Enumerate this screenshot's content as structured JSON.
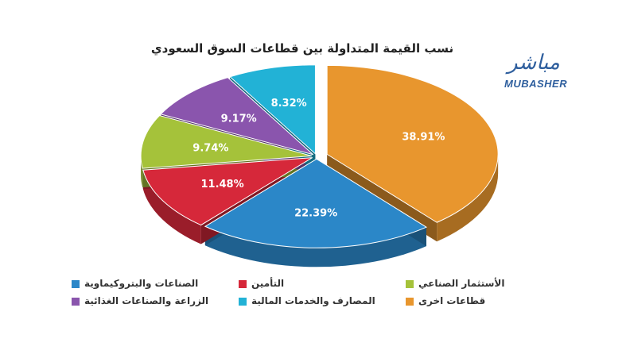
{
  "chart_data": {
    "type": "pie",
    "title": "نسب القيمة المتداولة بين قطاعات السوق السعودي",
    "legend_position": "bottom",
    "slices": [
      {
        "label": "قطاعات اخرى",
        "value": 38.91,
        "value_label": "38.91%",
        "color": "#e8962e"
      },
      {
        "label": "الصناعات والبتروكيماوية",
        "value": 22.39,
        "value_label": "22.39%",
        "color": "#2b87c8"
      },
      {
        "label": "التأمين",
        "value": 11.48,
        "value_label": "11.48%",
        "color": "#d6283a"
      },
      {
        "label": "الأستثمار الصناعي",
        "value": 9.74,
        "value_label": "9.74%",
        "color": "#a5c23a"
      },
      {
        "label": "الزراعة والصناعات الغذائية",
        "value": 9.17,
        "value_label": "9.17%",
        "color": "#8a55ad"
      },
      {
        "label": "المصارف والخدمات المالية",
        "value": 8.32,
        "value_label": "8.32%",
        "color": "#22b2d6"
      }
    ]
  },
  "logo": {
    "arabic": "مباشر",
    "latin": "MUBASHER"
  }
}
